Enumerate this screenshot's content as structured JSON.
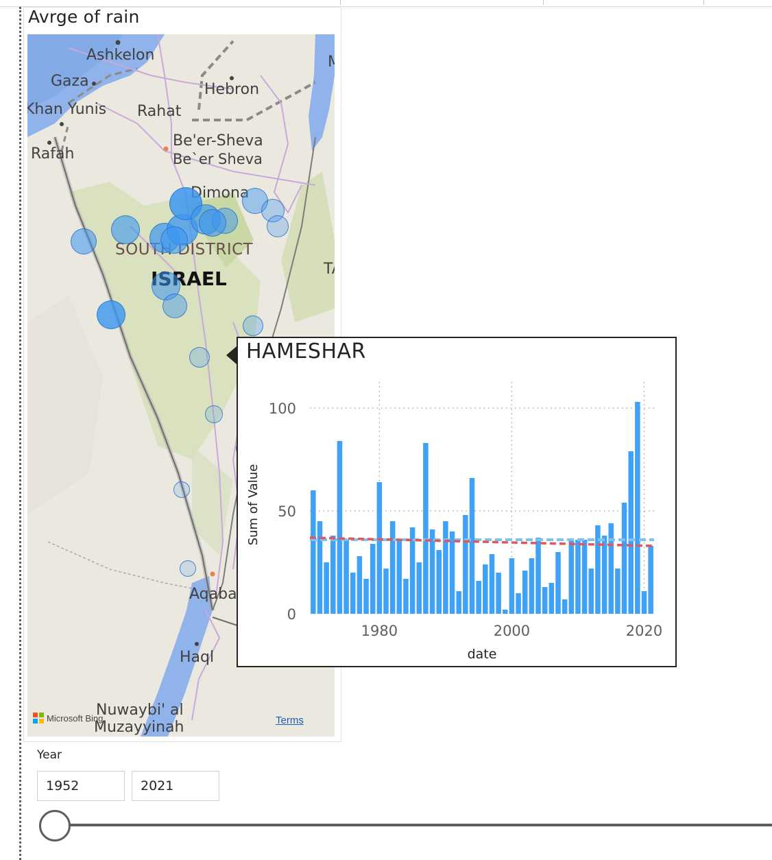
{
  "map": {
    "title": "Avrge of rain",
    "labels": [
      {
        "text": "Ashkelon"
      },
      {
        "text": "Gaza"
      },
      {
        "text": "Hebron"
      },
      {
        "text": "Khan Yunis"
      },
      {
        "text": "Rahat"
      },
      {
        "text": "Be'er-Sheva"
      },
      {
        "text": "Be`er Sheva"
      },
      {
        "text": "Rafah"
      },
      {
        "text": "Dimona"
      },
      {
        "text": "SOUTH DISTRICT"
      },
      {
        "text": "ISRAEL"
      },
      {
        "text": "Aqaba"
      },
      {
        "text": "Haql"
      },
      {
        "text": "Nuwaybi' al"
      },
      {
        "text": "Muzayyinah"
      },
      {
        "text": "M"
      },
      {
        "text": "TA"
      }
    ],
    "attribution": "Microsoft Bing",
    "terms": "Terms"
  },
  "tooltip": {
    "title": "HAMESHAR",
    "chart_data": {
      "type": "bar",
      "x": [
        1970,
        1971,
        1972,
        1973,
        1974,
        1975,
        1976,
        1977,
        1978,
        1979,
        1980,
        1981,
        1982,
        1983,
        1984,
        1985,
        1986,
        1987,
        1988,
        1989,
        1990,
        1991,
        1992,
        1993,
        1994,
        1995,
        1996,
        1997,
        1998,
        1999,
        2000,
        2001,
        2002,
        2003,
        2004,
        2005,
        2006,
        2007,
        2008,
        2009,
        2010,
        2011,
        2012,
        2013,
        2014,
        2015,
        2016,
        2017,
        2018,
        2019,
        2020,
        2021
      ],
      "values": [
        60,
        45,
        25,
        38,
        84,
        36,
        20,
        28,
        17,
        34,
        64,
        22,
        45,
        36,
        17,
        42,
        25,
        83,
        41,
        31,
        45,
        40,
        11,
        48,
        66,
        16,
        24,
        29,
        20,
        2,
        27,
        10,
        21,
        27,
        37,
        13,
        15,
        30,
        7,
        36,
        36,
        36,
        22,
        43,
        38,
        44,
        22,
        54,
        79,
        103,
        11,
        33
      ],
      "xticks": [
        1980,
        2000,
        2020
      ],
      "yticks": [
        0,
        50,
        100
      ],
      "xlabel": "date",
      "ylabel": "Sum of Value",
      "ylim": [
        0,
        110
      ],
      "average_line": 36,
      "trend_line": {
        "start": 37,
        "end": 33
      },
      "colors": {
        "bar": "#3fa2f7",
        "average": "#7ec3f0",
        "trend": "#e0585b"
      }
    }
  },
  "slicer": {
    "label": "Year",
    "start": "1952",
    "end": "2021"
  }
}
